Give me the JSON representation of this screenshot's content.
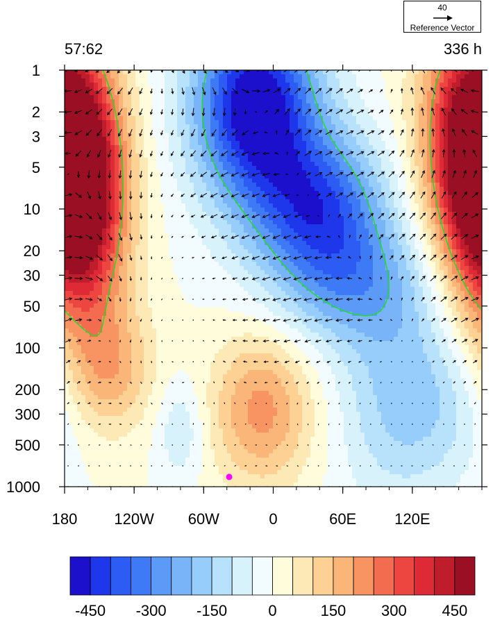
{
  "header": {
    "left_label": "57:62",
    "right_label": "336 h"
  },
  "reference_vector": {
    "value": "40",
    "label": "Reference Vector"
  },
  "chart_data": {
    "type": "heatmap",
    "x_ticks": [
      {
        "value": -180,
        "label": "180"
      },
      {
        "value": -120,
        "label": "120W"
      },
      {
        "value": -60,
        "label": "60W"
      },
      {
        "value": 0,
        "label": "0"
      },
      {
        "value": 60,
        "label": "60E"
      },
      {
        "value": 120,
        "label": "120E"
      }
    ],
    "y_ticks": [
      {
        "value": 1,
        "label": "1"
      },
      {
        "value": 2,
        "label": "2"
      },
      {
        "value": 3,
        "label": "3"
      },
      {
        "value": 5,
        "label": "5"
      },
      {
        "value": 10,
        "label": "10"
      },
      {
        "value": 20,
        "label": "20"
      },
      {
        "value": 30,
        "label": "30"
      },
      {
        "value": 50,
        "label": "50"
      },
      {
        "value": 100,
        "label": "100"
      },
      {
        "value": 200,
        "label": "200"
      },
      {
        "value": 300,
        "label": "300"
      },
      {
        "value": 500,
        "label": "500"
      },
      {
        "value": 1000,
        "label": "1000"
      }
    ],
    "xlim": [
      -180,
      180
    ],
    "ylim": [
      1,
      1000
    ],
    "y_scale": "log",
    "y_reversed": true,
    "contour_levels": [
      -500,
      -450,
      -400,
      -350,
      -300,
      -250,
      -200,
      -150,
      -100,
      -50,
      0,
      50,
      100,
      150,
      200,
      250,
      300,
      350,
      400,
      450,
      500
    ],
    "colorbar": {
      "colors": [
        "#1c10cc",
        "#1e37ea",
        "#2c5cf4",
        "#3e7af6",
        "#5b9af7",
        "#79b4f8",
        "#97cdfa",
        "#b8e2fb",
        "#d8f2fc",
        "#f2fcfe",
        "#fefcdb",
        "#fde9b5",
        "#fcd193",
        "#fab678",
        "#f89462",
        "#f36c4f",
        "#ed4641",
        "#dd2a36",
        "#c01d2c",
        "#9a0f23"
      ],
      "labels": [
        {
          "value": -450,
          "label": "-450"
        },
        {
          "value": -300,
          "label": "-300"
        },
        {
          "value": -150,
          "label": "-150"
        },
        {
          "value": 0,
          "label": "0"
        },
        {
          "value": 150,
          "label": "150"
        },
        {
          "value": 300,
          "label": "300"
        },
        {
          "value": 450,
          "label": "450"
        }
      ]
    },
    "field_features": [
      {
        "lon": -168,
        "logp": 0.95,
        "amp": 520,
        "slon": 28,
        "slogp": 0.62
      },
      {
        "lon": 172,
        "logp": 0.45,
        "amp": 440,
        "slon": 30,
        "slogp": 0.6
      },
      {
        "lon": -15,
        "logp": 0.25,
        "amp": -520,
        "slon": 38,
        "slogp": 0.5
      },
      {
        "lon": 40,
        "logp": 1.0,
        "amp": -360,
        "slon": 40,
        "slogp": 0.38
      },
      {
        "lon": 70,
        "logp": 1.55,
        "amp": -200,
        "slon": 45,
        "slogp": 0.32
      },
      {
        "lon": 105,
        "logp": 2.35,
        "amp": -150,
        "slon": 35,
        "slogp": 0.55
      },
      {
        "lon": -10,
        "logp": 2.45,
        "amp": 220,
        "slon": 30,
        "slogp": 0.38
      },
      {
        "lon": -140,
        "logp": 2.15,
        "amp": 170,
        "slon": 25,
        "slogp": 0.32
      },
      {
        "lon": -80,
        "logp": 2.6,
        "amp": -100,
        "slon": 14,
        "slogp": 0.25
      },
      {
        "lon": 150,
        "logp": 2.4,
        "amp": -80,
        "slon": 30,
        "slogp": 0.4
      }
    ],
    "point_marker": {
      "lon": -38,
      "pressure": 850,
      "color": "#ff00ff"
    },
    "line_color": "#22dd22"
  }
}
